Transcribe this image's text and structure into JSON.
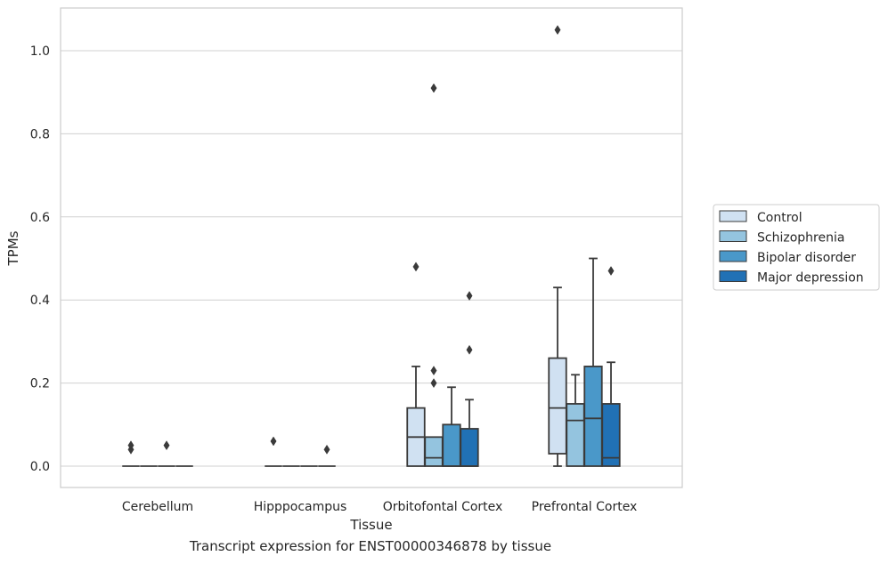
{
  "caption": "Transcript expression for ENST00000346878 by tissue",
  "chart_data": {
    "type": "box",
    "xlabel": "Tissue",
    "ylabel": "TPMs",
    "ylim": [
      -0.05,
      1.1
    ],
    "yticks": [
      0.0,
      0.2,
      0.4,
      0.6,
      0.8,
      1.0
    ],
    "ytick_labels": [
      "0.0",
      "0.2",
      "0.4",
      "0.6",
      "0.8",
      "1.0"
    ],
    "grid": "horizontal",
    "legend_position": "right",
    "categories": [
      "Cerebellum",
      "Hipppocampus",
      "Orbitofontal Cortex",
      "Prefrontal Cortex"
    ],
    "series": [
      {
        "name": "Control",
        "color": "#d0e1f2",
        "boxes": [
          {
            "whislo": 0,
            "q1": 0,
            "med": 0,
            "q3": 0,
            "whishi": 0,
            "fliers": [
              0.04,
              0.05
            ]
          },
          {
            "whislo": 0,
            "q1": 0,
            "med": 0,
            "q3": 0,
            "whishi": 0,
            "fliers": [
              0.06
            ]
          },
          {
            "whislo": 0,
            "q1": 0,
            "med": 0.07,
            "q3": 0.14,
            "whishi": 0.24,
            "fliers": [
              0.48
            ]
          },
          {
            "whislo": 0,
            "q1": 0.03,
            "med": 0.14,
            "q3": 0.26,
            "whishi": 0.43,
            "fliers": [
              1.05
            ]
          }
        ]
      },
      {
        "name": "Schizophrenia",
        "color": "#94c4df",
        "boxes": [
          {
            "whislo": 0,
            "q1": 0,
            "med": 0,
            "q3": 0,
            "whishi": 0,
            "fliers": []
          },
          {
            "whislo": 0,
            "q1": 0,
            "med": 0,
            "q3": 0,
            "whishi": 0,
            "fliers": []
          },
          {
            "whislo": 0,
            "q1": 0,
            "med": 0.02,
            "q3": 0.07,
            "whishi": 0.07,
            "fliers": [
              0.2,
              0.23,
              0.91
            ]
          },
          {
            "whislo": 0,
            "q1": 0,
            "med": 0.11,
            "q3": 0.15,
            "whishi": 0.22,
            "fliers": []
          }
        ]
      },
      {
        "name": "Bipolar disorder",
        "color": "#4a98c9",
        "boxes": [
          {
            "whislo": 0,
            "q1": 0,
            "med": 0,
            "q3": 0,
            "whishi": 0,
            "fliers": [
              0.05
            ]
          },
          {
            "whislo": 0,
            "q1": 0,
            "med": 0,
            "q3": 0,
            "whishi": 0,
            "fliers": []
          },
          {
            "whislo": 0,
            "q1": 0,
            "med": 0,
            "q3": 0.1,
            "whishi": 0.19,
            "fliers": []
          },
          {
            "whislo": 0,
            "q1": 0,
            "med": 0.115,
            "q3": 0.24,
            "whishi": 0.5,
            "fliers": []
          }
        ]
      },
      {
        "name": "Major depression",
        "color": "#2171b5",
        "boxes": [
          {
            "whislo": 0,
            "q1": 0,
            "med": 0,
            "q3": 0,
            "whishi": 0,
            "fliers": []
          },
          {
            "whislo": 0,
            "q1": 0,
            "med": 0,
            "q3": 0,
            "whishi": 0,
            "fliers": [
              0.04
            ]
          },
          {
            "whislo": 0,
            "q1": 0,
            "med": 0,
            "q3": 0.09,
            "whishi": 0.16,
            "fliers": [
              0.28,
              0.41
            ]
          },
          {
            "whislo": 0,
            "q1": 0,
            "med": 0.02,
            "q3": 0.15,
            "whishi": 0.25,
            "fliers": [
              0.47
            ]
          }
        ]
      }
    ]
  }
}
